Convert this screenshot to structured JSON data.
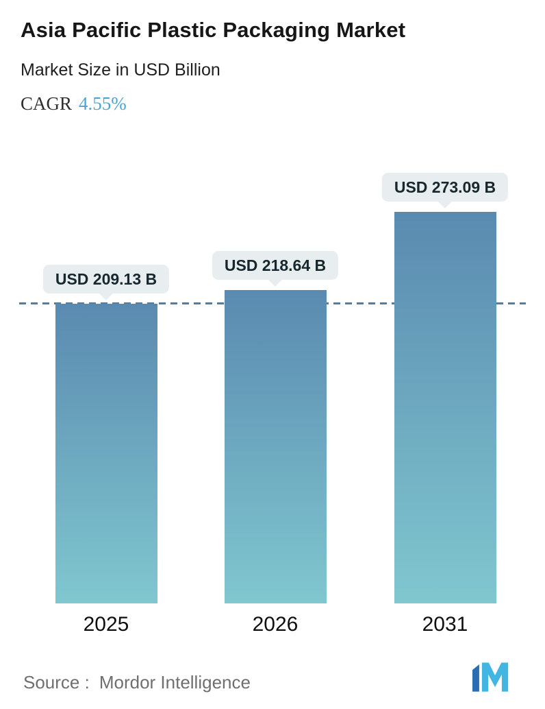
{
  "header": {
    "title": "Asia Pacific Plastic Packaging Market",
    "subtitle": "Market Size in USD Billion",
    "cagr_label": "CAGR",
    "cagr_value": "4.55%"
  },
  "chart_data": {
    "type": "bar",
    "categories": [
      "2025",
      "2026",
      "2031"
    ],
    "values": [
      209.13,
      218.64,
      273.09
    ],
    "value_labels": [
      "USD 209.13 B",
      "USD 218.64 B",
      "USD 273.09 B"
    ],
    "unit": "USD Billion",
    "title": "Asia Pacific Plastic Packaging Market",
    "ylabel": "Market Size in USD Billion",
    "ylim": [
      0,
      300
    ],
    "grid": false,
    "legend": false,
    "reference_line_value": 209.13,
    "reference_line_style": "dashed",
    "reference_line_color": "#4a80a9",
    "bar_color_top": "#5a8ab0",
    "bar_color_bottom": "#80c7cf",
    "tooltip_bg": "#e8eef0"
  },
  "footer": {
    "source_label": "Source :",
    "source_value": "Mordor Intelligence"
  },
  "colors": {
    "accent_blue": "#4aa4d1",
    "logo_dark": "#2b6cb3",
    "logo_light": "#41b6e2"
  }
}
